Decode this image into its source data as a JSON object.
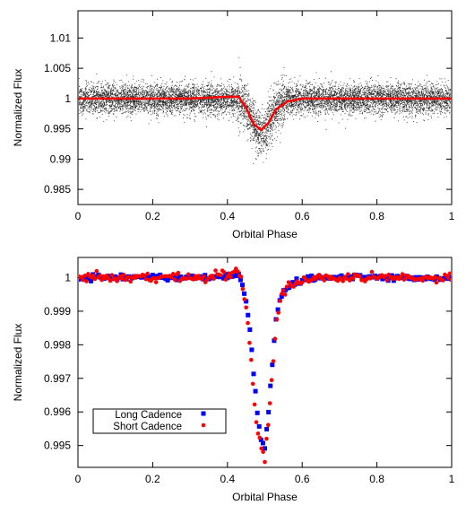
{
  "chart_data": [
    {
      "type": "scatter",
      "title": "",
      "xlabel": "Orbital Phase",
      "ylabel": "Normalized Flux",
      "xlim": [
        0,
        1
      ],
      "ylim": [
        0.9825,
        1.0145
      ],
      "xticks": [
        0,
        0.2,
        0.4,
        0.6,
        0.8,
        1
      ],
      "xtick_labels": [
        "0",
        "0.2",
        "0.4",
        "0.6",
        "0.8",
        "1"
      ],
      "yticks": [
        0.985,
        0.99,
        0.995,
        1,
        1.005,
        1.01
      ],
      "ytick_labels": [
        "0.985",
        "0.99",
        "0.995",
        "1",
        "1.005",
        "1.01"
      ],
      "grid": false,
      "legend": null,
      "series": [
        {
          "kind": "scatter",
          "color": "#000000",
          "description": "dense raw photometry, scatter about 1 with sigma ~0.0012, dip centered at phase 0.49 to ~0.9945",
          "baseline": 1.0,
          "sigma": 0.0012,
          "dip_center": 0.49,
          "dip_depth": 0.0055,
          "dip_half_width": 0.04
        },
        {
          "kind": "line",
          "color": "#ff0000",
          "x": [
            0,
            0.1,
            0.2,
            0.3,
            0.4,
            0.43,
            0.45,
            0.47,
            0.49,
            0.51,
            0.53,
            0.56,
            0.6,
            0.7,
            0.8,
            0.9,
            1.0
          ],
          "y": [
            1.0,
            1.0,
            1.0,
            1.0,
            1.0003,
            1.0003,
            0.9985,
            0.9958,
            0.9948,
            0.996,
            0.9982,
            0.9995,
            1.0,
            1.0,
            1.0,
            1.0,
            1.0
          ]
        }
      ]
    },
    {
      "type": "scatter",
      "title": "",
      "xlabel": "Orbital Phase",
      "ylabel": "Normalized Flux",
      "xlim": [
        0,
        1
      ],
      "ylim": [
        0.99435,
        1.0006
      ],
      "xticks": [
        0,
        0.2,
        0.4,
        0.6,
        0.8,
        1
      ],
      "xtick_labels": [
        "0",
        "0.2",
        "0.4",
        "0.6",
        "0.8",
        "1"
      ],
      "yticks": [
        0.995,
        0.996,
        0.997,
        0.998,
        0.999,
        1
      ],
      "ytick_labels": [
        "0.995",
        "0.996",
        "0.997",
        "0.998",
        "0.999",
        "1"
      ],
      "grid": false,
      "legend": "lower-left",
      "series": [
        {
          "name": "Long Cadence",
          "marker": "square",
          "color": "#0000ff",
          "profile_x": [
            0,
            0.05,
            0.1,
            0.15,
            0.2,
            0.25,
            0.3,
            0.35,
            0.4,
            0.43,
            0.44,
            0.45,
            0.46,
            0.47,
            0.48,
            0.49,
            0.5,
            0.51,
            0.52,
            0.53,
            0.54,
            0.55,
            0.56,
            0.58,
            0.6,
            0.65,
            0.7,
            0.75,
            0.8,
            0.85,
            0.9,
            0.95,
            1.0
          ],
          "profile_y": [
            0.99998,
            1.0,
            1.0,
            1.0,
            1.0,
            1.0,
            1.0,
            1.0,
            1.00005,
            1.0001,
            0.99985,
            0.9993,
            0.9985,
            0.9972,
            0.996,
            0.9952,
            0.9949,
            0.996,
            0.9974,
            0.99875,
            0.99935,
            0.9996,
            0.9997,
            0.99985,
            0.99995,
            1.0,
            1.0,
            1.0,
            1.0,
            1.0,
            1.0,
            1.0,
            0.99998
          ]
        },
        {
          "name": "Short Cadence",
          "marker": "circle",
          "color": "#ff0000",
          "profile_x": [
            0,
            0.05,
            0.1,
            0.15,
            0.2,
            0.25,
            0.3,
            0.35,
            0.4,
            0.43,
            0.44,
            0.45,
            0.46,
            0.47,
            0.48,
            0.49,
            0.5,
            0.51,
            0.52,
            0.53,
            0.54,
            0.55,
            0.56,
            0.58,
            0.6,
            0.65,
            0.7,
            0.75,
            0.8,
            0.85,
            0.9,
            0.95,
            1.0
          ],
          "profile_y": [
            0.99998,
            1.0,
            1.0,
            1.0,
            1.0,
            1.0,
            1.0,
            1.0,
            1.00007,
            1.00025,
            0.9998,
            0.9991,
            0.998,
            0.9966,
            0.9955,
            0.995,
            0.9946,
            0.9958,
            0.9972,
            0.9986,
            0.9993,
            0.99955,
            0.9997,
            0.99985,
            0.99995,
            1.0,
            1.0,
            1.0,
            1.0,
            1.0,
            1.0,
            1.0,
            0.99998
          ]
        }
      ]
    }
  ]
}
